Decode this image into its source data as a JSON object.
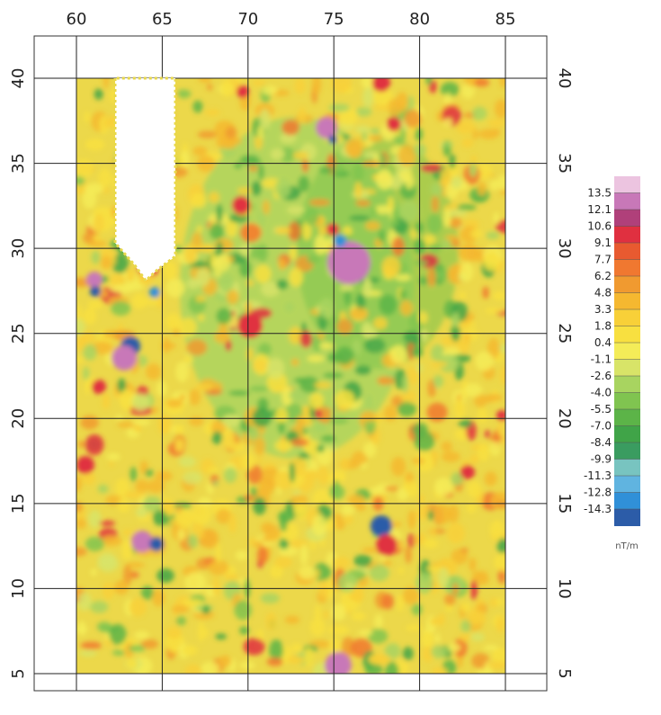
{
  "map": {
    "x_ticks": [
      60,
      65,
      70,
      75,
      80,
      85
    ],
    "y_ticks": [
      40,
      35,
      30,
      25,
      20,
      15,
      10,
      5
    ],
    "xlim": [
      60,
      85
    ],
    "ylim": [
      5,
      40
    ],
    "colorbar": {
      "labels": [
        "13.5",
        "12.1",
        "10.6",
        "9.1",
        "7.7",
        "6.2",
        "4.8",
        "3.3",
        "1.8",
        "0.4",
        "-1.1",
        "-2.6",
        "-4.0",
        "-5.5",
        "-7.0",
        "-8.4",
        "-9.9",
        "-11.3",
        "-12.8",
        "-14.3"
      ],
      "colors": [
        "#ecc4e0",
        "#c878b8",
        "#b0407a",
        "#e03040",
        "#e85a30",
        "#f07830",
        "#f09a30",
        "#f5b830",
        "#f8d038",
        "#f8e040",
        "#f4ec58",
        "#d8e468",
        "#a8d460",
        "#80c450",
        "#5cb448",
        "#40a448",
        "#3a9c60",
        "#78c4c0",
        "#60b4e0",
        "#3090d8",
        "#2c5ca8"
      ],
      "unit": "nT/m"
    }
  }
}
